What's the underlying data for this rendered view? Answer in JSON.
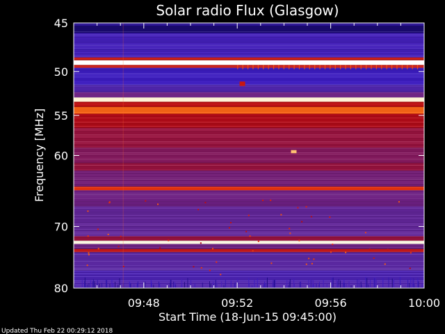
{
  "chart_data": {
    "type": "heatmap",
    "title": "Solar radio Flux (Glasgow)",
    "xlabel": "Start Time (18-Jun-15 09:45:00)",
    "ylabel": "Frequency [MHz]",
    "x_range": [
      "09:45:00",
      "10:00:00"
    ],
    "xlim_minutes": [
      45,
      60
    ],
    "ylim_mhz": [
      45,
      80
    ],
    "y_scale": "log",
    "y_ticks": [
      {
        "label": "45",
        "value": 45
      },
      {
        "label": "50",
        "value": 50
      },
      {
        "label": "55",
        "value": 55
      },
      {
        "label": "60",
        "value": 60
      },
      {
        "label": "70",
        "value": 70
      },
      {
        "label": "80",
        "value": 80
      }
    ],
    "x_ticks": [
      {
        "label": "09:48",
        "minute": 48
      },
      {
        "label": "09:52",
        "minute": 52
      },
      {
        "label": "09:56",
        "minute": 56
      },
      {
        "label": "10:00",
        "minute": 60
      }
    ],
    "colormap": [
      "#05001e",
      "#1c0b7a",
      "#3d1cc0",
      "#5a2aa8",
      "#7a1a68",
      "#b40a14",
      "#e6280a",
      "#ff7a1a",
      "#ffe6a0",
      "#ffffff"
    ],
    "frequency_bands": [
      {
        "f_start": 45.0,
        "f_end": 45.3,
        "intensity": 0.15
      },
      {
        "f_start": 45.3,
        "f_end": 46.0,
        "intensity": 0.1
      },
      {
        "f_start": 46.0,
        "f_end": 48.5,
        "intensity": 0.25
      },
      {
        "f_start": 48.5,
        "f_end": 48.8,
        "intensity": 0.6
      },
      {
        "f_start": 48.8,
        "f_end": 49.3,
        "intensity": 1.0
      },
      {
        "f_start": 49.3,
        "f_end": 49.6,
        "intensity": 0.6
      },
      {
        "f_start": 49.6,
        "f_end": 51.5,
        "intensity": 0.22
      },
      {
        "f_start": 51.5,
        "f_end": 52.3,
        "intensity": 0.3
      },
      {
        "f_start": 52.3,
        "f_end": 52.9,
        "intensity": 0.4
      },
      {
        "f_start": 52.9,
        "f_end": 53.4,
        "intensity": 0.95
      },
      {
        "f_start": 53.4,
        "f_end": 54.0,
        "intensity": 0.58
      },
      {
        "f_start": 54.0,
        "f_end": 54.8,
        "intensity": 0.75
      },
      {
        "f_start": 54.8,
        "f_end": 56.5,
        "intensity": 0.55
      },
      {
        "f_start": 56.5,
        "f_end": 59.0,
        "intensity": 0.5
      },
      {
        "f_start": 59.0,
        "f_end": 61.0,
        "intensity": 0.46
      },
      {
        "f_start": 61.0,
        "f_end": 62.0,
        "intensity": 0.5
      },
      {
        "f_start": 62.0,
        "f_end": 64.2,
        "intensity": 0.42
      },
      {
        "f_start": 64.2,
        "f_end": 64.7,
        "intensity": 0.68
      },
      {
        "f_start": 64.7,
        "f_end": 67.0,
        "intensity": 0.4
      },
      {
        "f_start": 67.0,
        "f_end": 71.5,
        "intensity": 0.36
      },
      {
        "f_start": 71.5,
        "f_end": 72.2,
        "intensity": 0.5
      },
      {
        "f_start": 72.2,
        "f_end": 72.7,
        "intensity": 0.97
      },
      {
        "f_start": 72.7,
        "f_end": 73.5,
        "intensity": 0.4
      },
      {
        "f_start": 73.5,
        "f_end": 74.0,
        "intensity": 0.58
      },
      {
        "f_start": 74.0,
        "f_end": 77.0,
        "intensity": 0.34
      },
      {
        "f_start": 77.0,
        "f_end": 78.8,
        "intensity": 0.28
      },
      {
        "f_start": 78.8,
        "f_end": 80.0,
        "intensity": 0.3
      }
    ],
    "bursts": [
      {
        "minute": 54.3,
        "f_start": 59.3,
        "f_end": 59.7,
        "intensity": 0.85
      },
      {
        "minute": 52.1,
        "f_start": 51.1,
        "f_end": 51.6,
        "intensity": 0.6
      }
    ]
  },
  "footer": {
    "updated": "Updated Thu Feb 22 00:29:12 2018"
  }
}
